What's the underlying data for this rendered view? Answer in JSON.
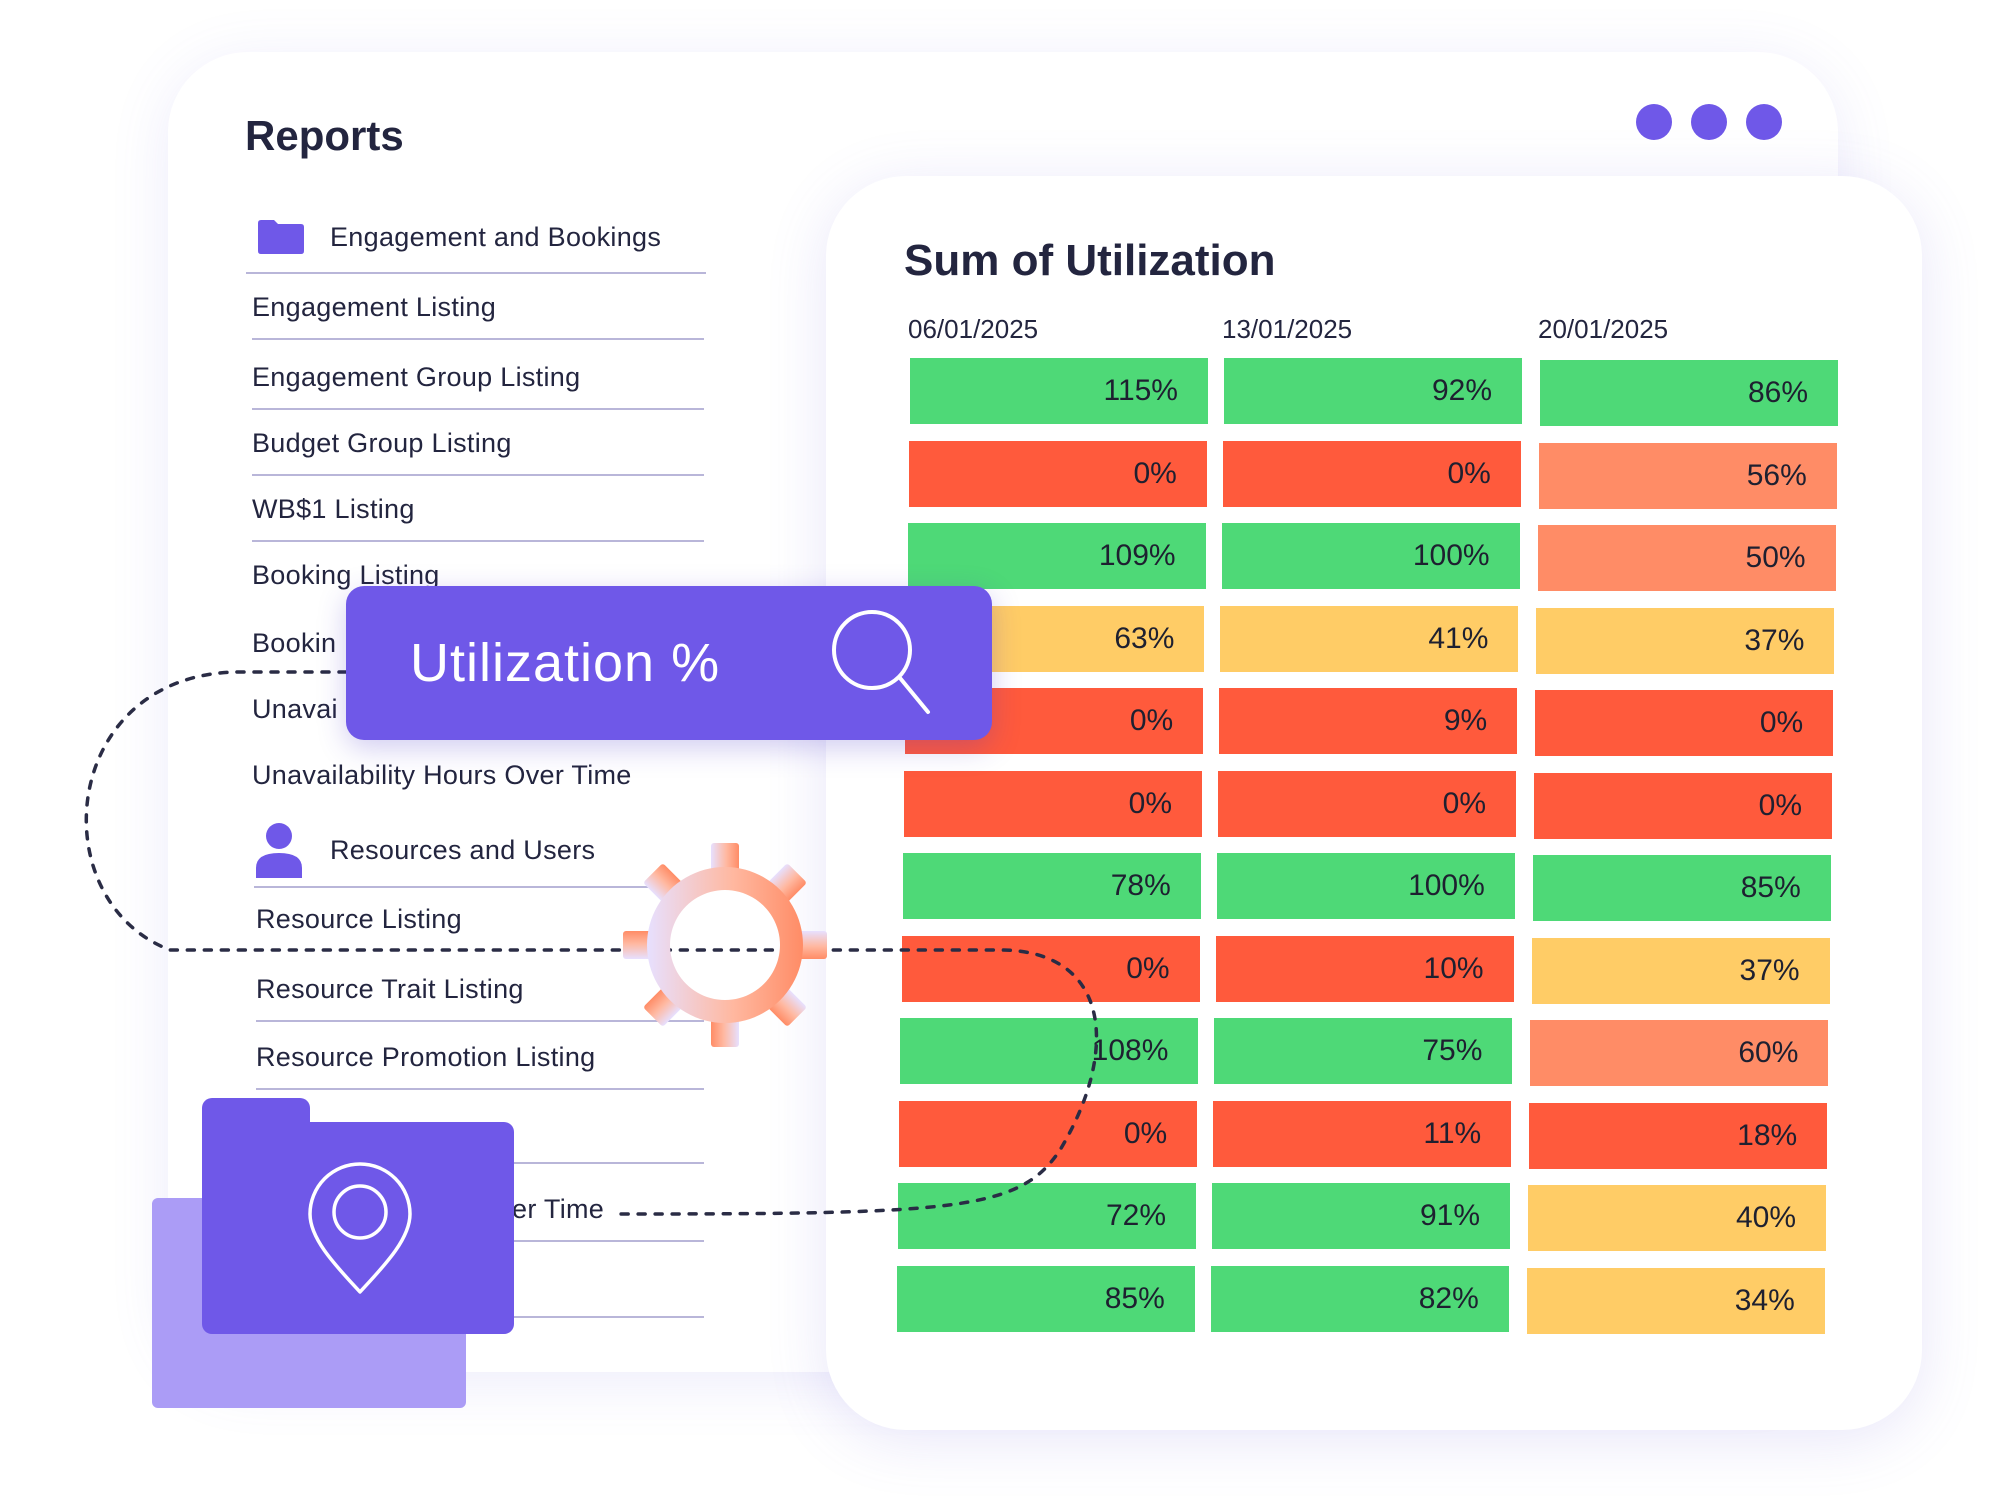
{
  "reports": {
    "title": "Reports",
    "sections": [
      {
        "icon": "folder-icon",
        "label": "Engagement and Bookings",
        "items": [
          "Engagement Listing",
          "Engagement Group Listing",
          "Budget Group Listing",
          "WB$1 Listing",
          "Booking Listing",
          "Bookin",
          "Unavai",
          "Unavailability Hours Over Time"
        ]
      },
      {
        "icon": "user-icon",
        "label": "Resources and Users",
        "items": [
          "Resource Listing",
          "Resource Trait Listing",
          "Resource Promotion Listing",
          "",
          "er Time",
          ""
        ]
      }
    ]
  },
  "window_controls": {
    "dot_color": "#6f58e8",
    "count": 3
  },
  "utilization": {
    "title": "Sum of Utilization",
    "dates": [
      "06/01/2025",
      "13/01/2025",
      "20/01/2025"
    ],
    "rows": [
      [
        {
          "value": "115%",
          "status": "green"
        },
        {
          "value": "92%",
          "status": "green"
        },
        {
          "value": "86%",
          "status": "green"
        }
      ],
      [
        {
          "value": "0%",
          "status": "red"
        },
        {
          "value": "0%",
          "status": "red"
        },
        {
          "value": "56%",
          "status": "salmon"
        }
      ],
      [
        {
          "value": "109%",
          "status": "green"
        },
        {
          "value": "100%",
          "status": "green"
        },
        {
          "value": "50%",
          "status": "salmon"
        }
      ],
      [
        {
          "value": "63%",
          "status": "yellow"
        },
        {
          "value": "41%",
          "status": "yellow"
        },
        {
          "value": "37%",
          "status": "yellow"
        }
      ],
      [
        {
          "value": "0%",
          "status": "red"
        },
        {
          "value": "9%",
          "status": "red"
        },
        {
          "value": "0%",
          "status": "red"
        }
      ],
      [
        {
          "value": "0%",
          "status": "red"
        },
        {
          "value": "0%",
          "status": "red"
        },
        {
          "value": "0%",
          "status": "red"
        }
      ],
      [
        {
          "value": "78%",
          "status": "green"
        },
        {
          "value": "100%",
          "status": "green"
        },
        {
          "value": "85%",
          "status": "green"
        }
      ],
      [
        {
          "value": "0%",
          "status": "red"
        },
        {
          "value": "10%",
          "status": "red"
        },
        {
          "value": "37%",
          "status": "yellow"
        }
      ],
      [
        {
          "value": "108%",
          "status": "green"
        },
        {
          "value": "75%",
          "status": "green"
        },
        {
          "value": "60%",
          "status": "salmon"
        }
      ],
      [
        {
          "value": "0%",
          "status": "red"
        },
        {
          "value": "11%",
          "status": "red"
        },
        {
          "value": "18%",
          "status": "red"
        }
      ],
      [
        {
          "value": "72%",
          "status": "green"
        },
        {
          "value": "91%",
          "status": "green"
        },
        {
          "value": "40%",
          "status": "yellow"
        }
      ],
      [
        {
          "value": "85%",
          "status": "green"
        },
        {
          "value": "82%",
          "status": "green"
        },
        {
          "value": "34%",
          "status": "yellow"
        }
      ]
    ],
    "status_colors": {
      "green": "#4ed977",
      "red": "#ff5a3c",
      "salmon": "#ff8c66",
      "yellow": "#ffcc66"
    }
  },
  "search": {
    "query": "Utilization %",
    "icon": "search-icon"
  },
  "decorations": {
    "gear": "gear-icon",
    "folder": "folder-icon",
    "pin": "location-pin-icon",
    "accent": "#6f58e8"
  }
}
